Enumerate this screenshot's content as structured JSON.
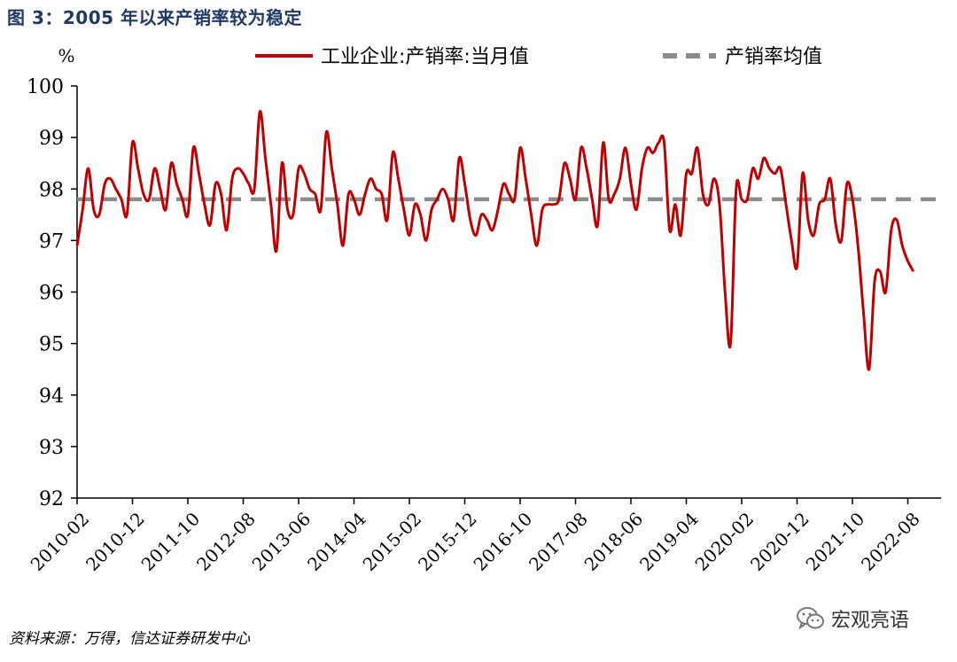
{
  "figure": {
    "title": "图 3：2005 年以来产销率较为稳定",
    "source": "资料来源：万得，信达证券研发中心",
    "watermark": "宏观亮语",
    "watermark_icon": "wechat-icon"
  },
  "chart_data": {
    "type": "line",
    "yunit": "%",
    "ylim": [
      92,
      100
    ],
    "yticks": [
      92,
      93,
      94,
      95,
      96,
      97,
      98,
      99,
      100
    ],
    "xstart": "2010-02",
    "xend": "2023-02",
    "xticks": [
      "2010-02",
      "2010-12",
      "2011-10",
      "2012-08",
      "2013-06",
      "2014-04",
      "2015-02",
      "2015-12",
      "2016-10",
      "2017-08",
      "2018-06",
      "2019-04",
      "2020-02",
      "2020-12",
      "2021-10",
      "2022-08"
    ],
    "grid": false,
    "legend_position": "top",
    "series": [
      {
        "name": "工业企业:产销率:当月值",
        "color": "#c00000",
        "style": "solid",
        "values": [
          96.9,
          97.6,
          98.4,
          97.6,
          97.5,
          98.1,
          98.2,
          98.0,
          97.8,
          97.5,
          98.9,
          98.4,
          97.9,
          97.8,
          98.4,
          98.0,
          97.6,
          98.5,
          98.1,
          97.8,
          97.5,
          98.8,
          98.3,
          97.7,
          97.3,
          98.1,
          97.9,
          97.2,
          98.2,
          98.4,
          98.3,
          98.1,
          98.0,
          99.5,
          98.6,
          97.7,
          96.8,
          98.5,
          97.6,
          97.5,
          98.4,
          98.3,
          98.0,
          97.9,
          97.6,
          99.1,
          98.4,
          97.7,
          96.9,
          97.9,
          97.8,
          97.5,
          97.9,
          98.2,
          98.0,
          97.9,
          97.4,
          98.7,
          98.2,
          97.6,
          97.1,
          97.7,
          97.5,
          97.0,
          97.6,
          97.8,
          98.0,
          97.8,
          97.4,
          98.6,
          98.1,
          97.4,
          97.1,
          97.5,
          97.4,
          97.2,
          97.6,
          98.1,
          97.9,
          97.8,
          98.8,
          98.2,
          97.5,
          96.9,
          97.6,
          97.7,
          97.7,
          97.8,
          98.5,
          98.2,
          97.8,
          98.8,
          98.4,
          97.8,
          97.3,
          98.9,
          97.8,
          97.9,
          98.2,
          98.8,
          98.1,
          97.6,
          98.4,
          98.8,
          98.7,
          98.9,
          98.9,
          97.2,
          97.7,
          97.1,
          98.3,
          98.3,
          98.8,
          97.9,
          97.7,
          98.2,
          97.7,
          96.0,
          95.0,
          98.0,
          97.8,
          97.8,
          98.4,
          98.2,
          98.6,
          98.4,
          98.3,
          98.4,
          97.7,
          97.0,
          96.5,
          98.3,
          97.4,
          97.1,
          97.7,
          97.8,
          98.2,
          97.3,
          97.0,
          98.1,
          97.8,
          96.9,
          95.6,
          94.5,
          96.2,
          96.4,
          96.0,
          97.2,
          97.4,
          96.9,
          96.6,
          96.4
        ]
      },
      {
        "name": "产销率均值",
        "color": "#8c8c8c",
        "style": "dashed",
        "values": [
          97.8
        ]
      }
    ]
  }
}
